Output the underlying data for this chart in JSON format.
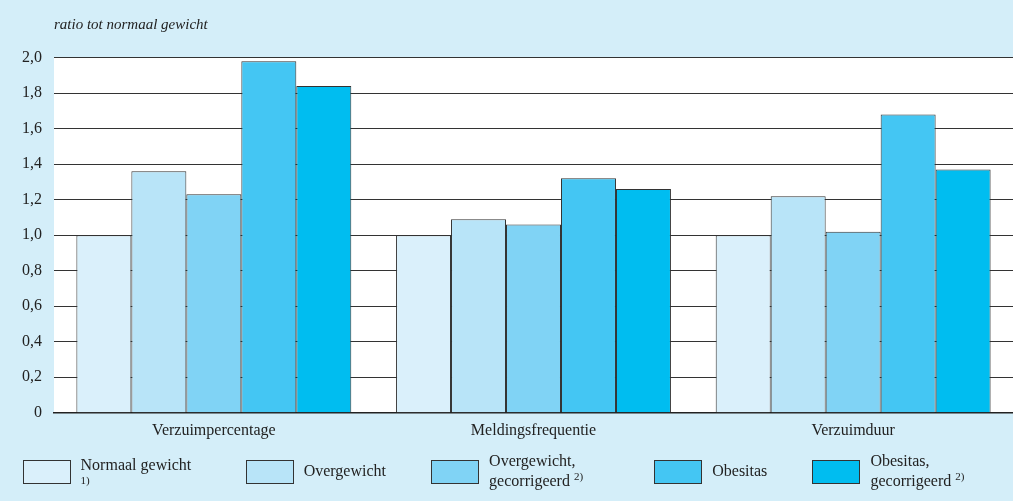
{
  "chart_data": {
    "type": "bar",
    "ylabel": "ratio tot normaal gewicht",
    "categories": [
      "Verzuimpercentage",
      "Meldingsfrequentie",
      "Verzuimduur"
    ],
    "series": [
      {
        "name": "Normaal gewicht $^{1)}$",
        "color": "#daf0fb",
        "values": [
          1.0,
          1.0,
          1.0
        ]
      },
      {
        "name": "Overgewicht",
        "color": "#b8e4f8",
        "values": [
          1.36,
          1.09,
          1.22
        ]
      },
      {
        "name": "Overgewicht, gecorrigeerd $^{2)}$",
        "color": "#80d3f5",
        "values": [
          1.23,
          1.06,
          1.02
        ]
      },
      {
        "name": "Obesitas",
        "color": "#44c6f3",
        "values": [
          1.98,
          1.32,
          1.68
        ]
      },
      {
        "name": "Obesitas, gecorrigeerd $^{2)}$",
        "color": "#00bdf0",
        "values": [
          1.84,
          1.26,
          1.37
        ]
      }
    ],
    "ylim": [
      0,
      2.0
    ],
    "yticks": [
      0,
      {
        "value": 0.2,
        "label": "0,2"
      },
      {
        "value": 0.4,
        "label": "0,4"
      },
      {
        "value": 0.6,
        "label": "0,6"
      },
      {
        "value": 0.8,
        "label": "0,8"
      },
      {
        "value": 1.0,
        "label": "1,0"
      },
      {
        "value": 1.2,
        "label": "1,2"
      },
      {
        "value": 1.4,
        "label": "1,4"
      },
      {
        "value": 1.6,
        "label": "1,6"
      },
      {
        "value": 1.8,
        "label": "1,8"
      },
      {
        "value": 2.0,
        "label": "2,0"
      }
    ],
    "grid": "y",
    "legend": "bottom"
  }
}
